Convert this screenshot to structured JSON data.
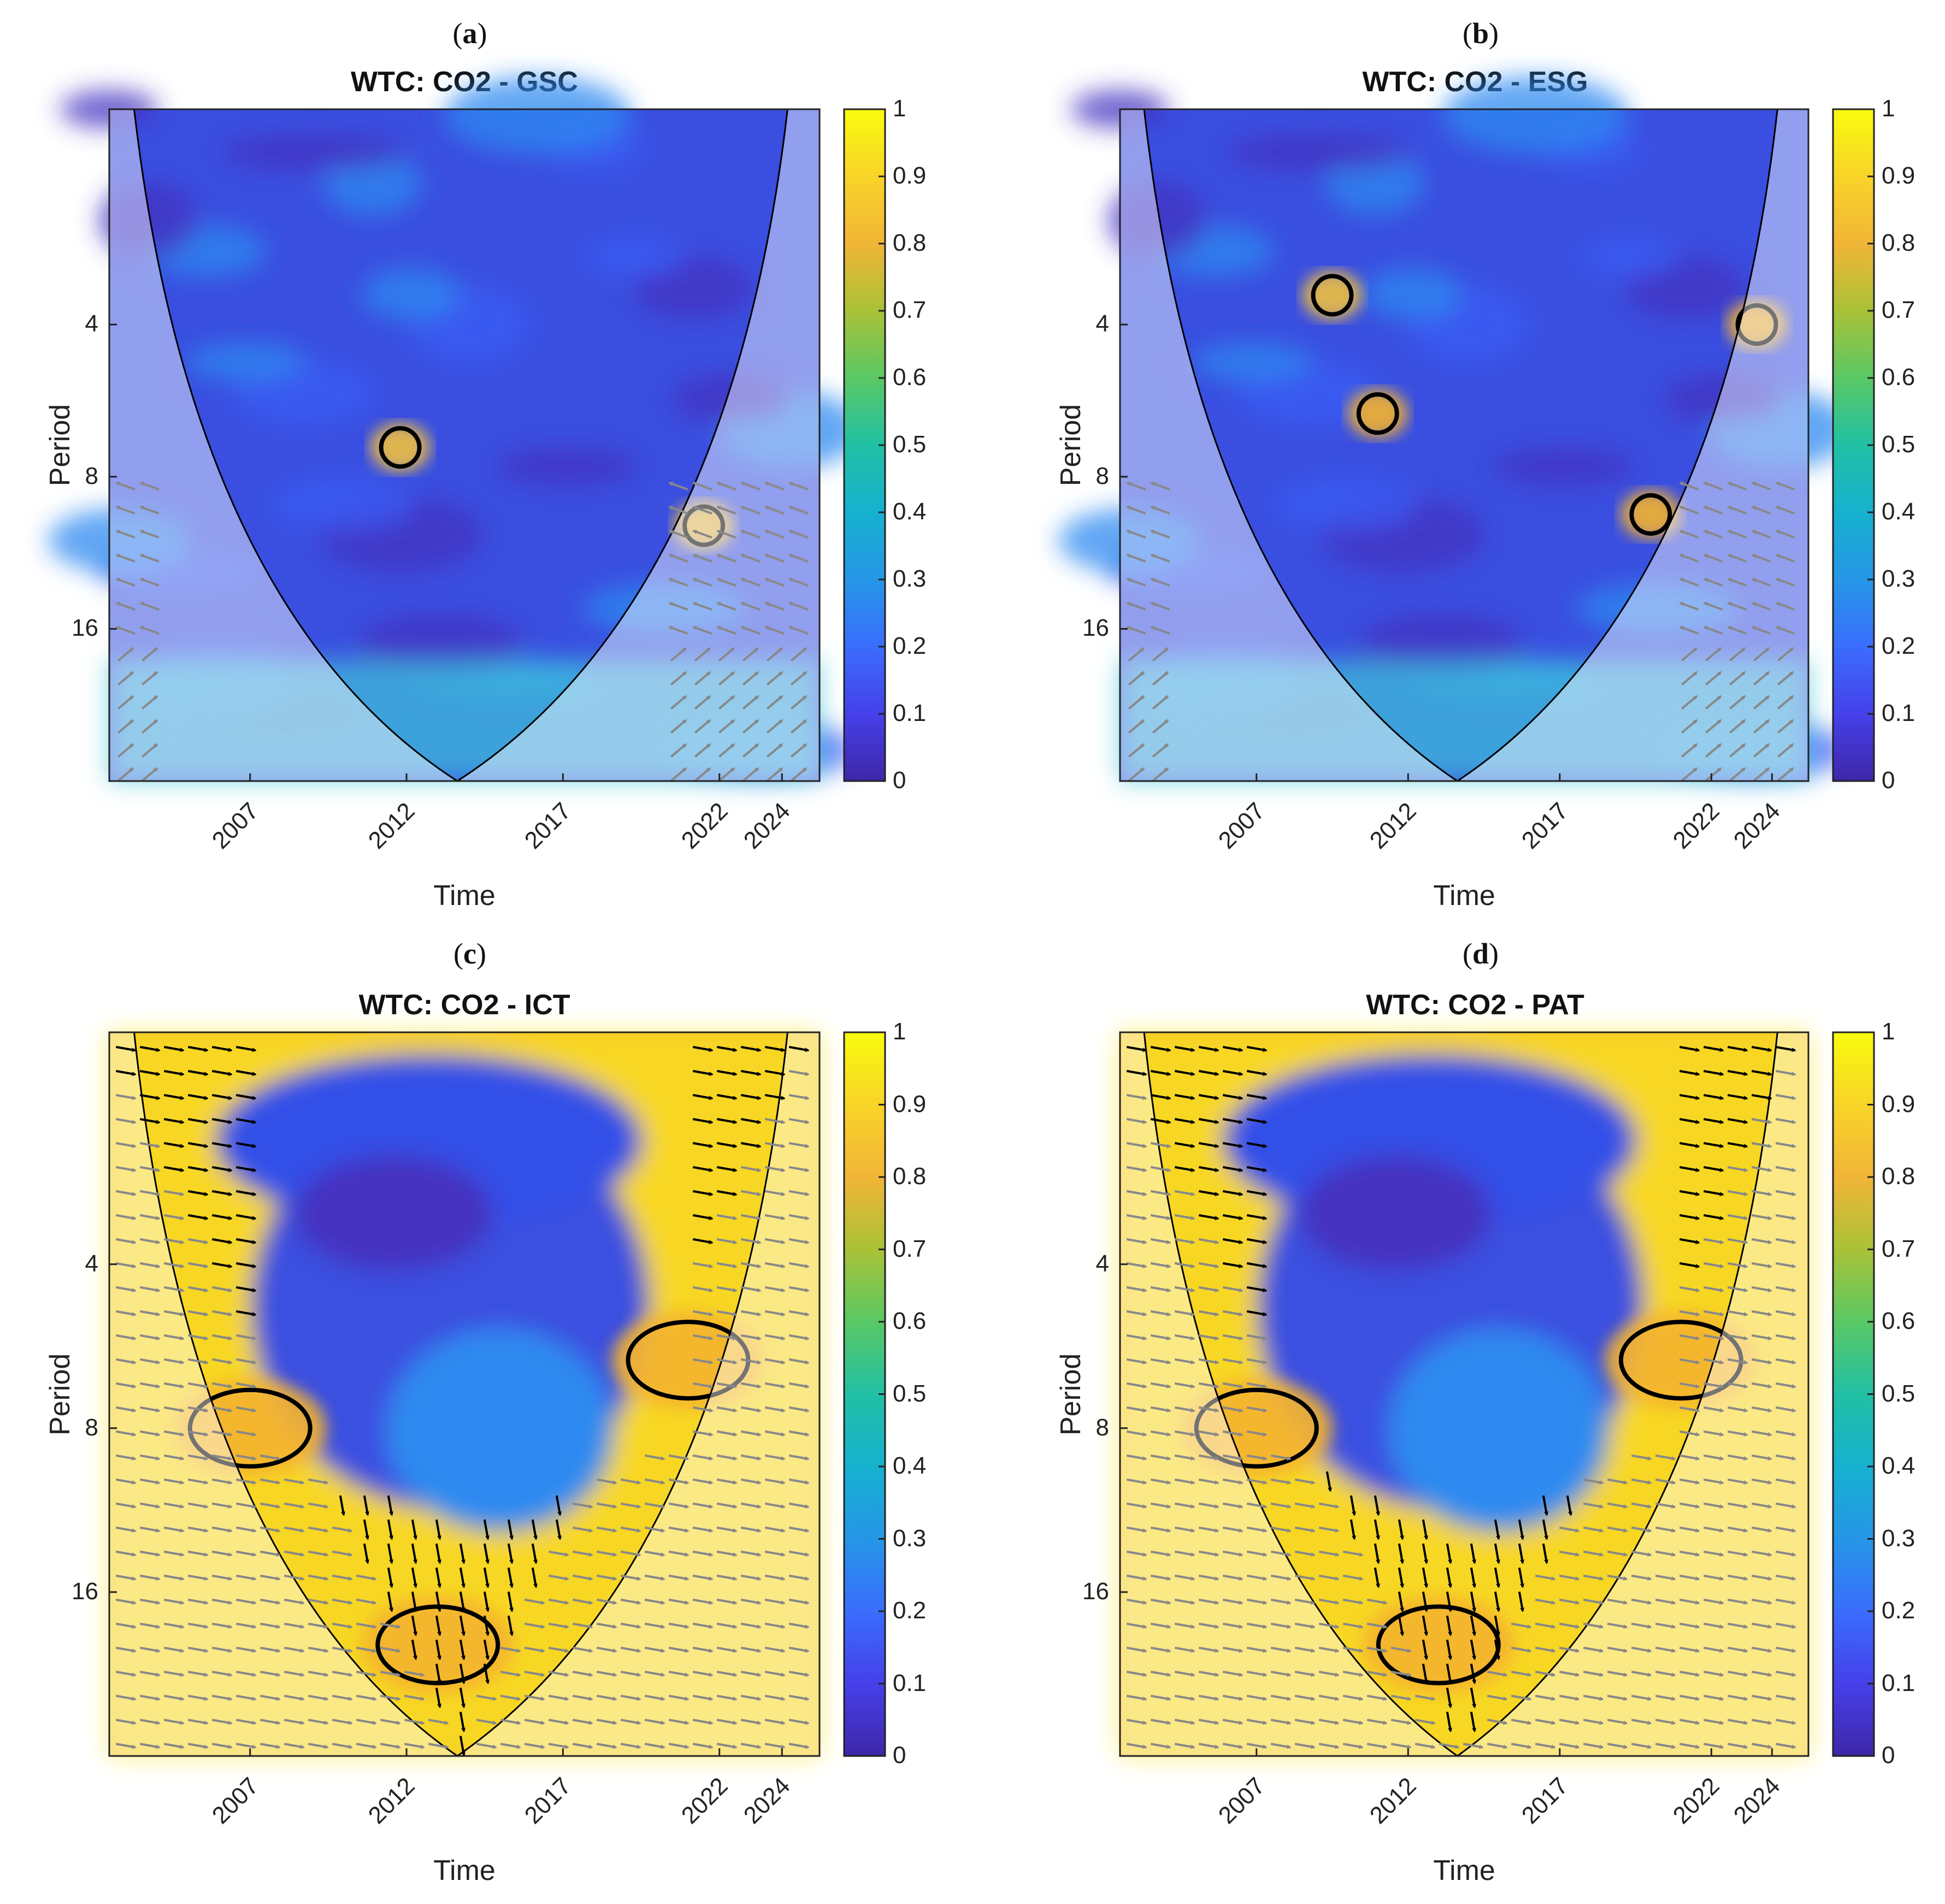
{
  "axis_labels": {
    "x": "Time",
    "y": "Period"
  },
  "x_ticks": [
    "2007",
    "2012",
    "2017",
    "2022",
    "2024"
  ],
  "y_ticks": [
    "4",
    "8",
    "16"
  ],
  "colorbar_ticks": [
    "1",
    "0.9",
    "0.8",
    "0.7",
    "0.6",
    "0.5",
    "0.4",
    "0.3",
    "0.2",
    "0.1",
    "0"
  ],
  "colors": {
    "low": "#3e26a8",
    "mid_low": "#2f7cf6",
    "mid": "#23c2b6",
    "mid_high": "#3fd26e",
    "high": "#f5b830",
    "max": "#f9fb0e",
    "contour": "#000000",
    "coi_fade": "#ffffff"
  },
  "panels": [
    {
      "tag_letter": "a",
      "tag_text": "(a)",
      "title": "WTC: CO2 - GSC"
    },
    {
      "tag_letter": "b",
      "tag_text": "(b)",
      "title": "WTC: CO2 - ESG"
    },
    {
      "tag_letter": "c",
      "tag_text": "(c)",
      "title": "WTC: CO2 - ICT"
    },
    {
      "tag_letter": "d",
      "tag_text": "(d)",
      "title": "WTC: CO2 - PAT"
    }
  ],
  "chart_data": [
    {
      "type": "heatmap",
      "title": "WTC: CO2 - GSC",
      "xlabel": "Time",
      "ylabel": "Period",
      "x_ticks": [
        2007,
        2012,
        2017,
        2022,
        2024
      ],
      "y_ticks": [
        4,
        8,
        16
      ],
      "y_scale": "log2",
      "colorbar_range": [
        0,
        1
      ],
      "coherence_level": "low",
      "significant_regions": [
        {
          "x_center": 2011.8,
          "period_center": 7,
          "level": 0.8
        },
        {
          "x_center": 2021.5,
          "period_center": 10,
          "level": 0.8
        }
      ]
    },
    {
      "type": "heatmap",
      "title": "WTC: CO2 - ESG",
      "xlabel": "Time",
      "ylabel": "Period",
      "x_ticks": [
        2007,
        2012,
        2017,
        2022,
        2024
      ],
      "y_ticks": [
        4,
        8,
        16
      ],
      "y_scale": "log2",
      "colorbar_range": [
        0,
        1
      ],
      "coherence_level": "low",
      "significant_regions": [
        {
          "x_center": 2009.5,
          "period_center": 3.5,
          "level": 0.8
        },
        {
          "x_center": 2011,
          "period_center": 6,
          "level": 0.85
        },
        {
          "x_center": 2020,
          "period_center": 9.5,
          "level": 0.85
        },
        {
          "x_center": 2023.5,
          "period_center": 4,
          "level": 0.85
        }
      ]
    },
    {
      "type": "heatmap",
      "title": "WTC: CO2 - ICT",
      "xlabel": "Time",
      "ylabel": "Period",
      "x_ticks": [
        2007,
        2012,
        2017,
        2022,
        2024
      ],
      "y_ticks": [
        4,
        8,
        16
      ],
      "y_scale": "log2",
      "colorbar_range": [
        0,
        1
      ],
      "coherence_level": "high",
      "significant_regions": [
        {
          "x_center": 2007,
          "period_center": 8,
          "level": 0.9
        },
        {
          "x_center": 2013,
          "period_center": 20,
          "level": 0.85
        },
        {
          "x_center": 2021,
          "period_center": 6,
          "level": 0.85
        }
      ]
    },
    {
      "type": "heatmap",
      "title": "WTC: CO2 - PAT",
      "xlabel": "Time",
      "ylabel": "Period",
      "x_ticks": [
        2007,
        2012,
        2017,
        2022,
        2024
      ],
      "y_ticks": [
        4,
        8,
        16
      ],
      "y_scale": "log2",
      "colorbar_range": [
        0,
        1
      ],
      "coherence_level": "high",
      "significant_regions": [
        {
          "x_center": 2007,
          "period_center": 8,
          "level": 0.9
        },
        {
          "x_center": 2013,
          "period_center": 20,
          "level": 0.85
        },
        {
          "x_center": 2021,
          "period_center": 6,
          "level": 0.85
        }
      ]
    }
  ]
}
